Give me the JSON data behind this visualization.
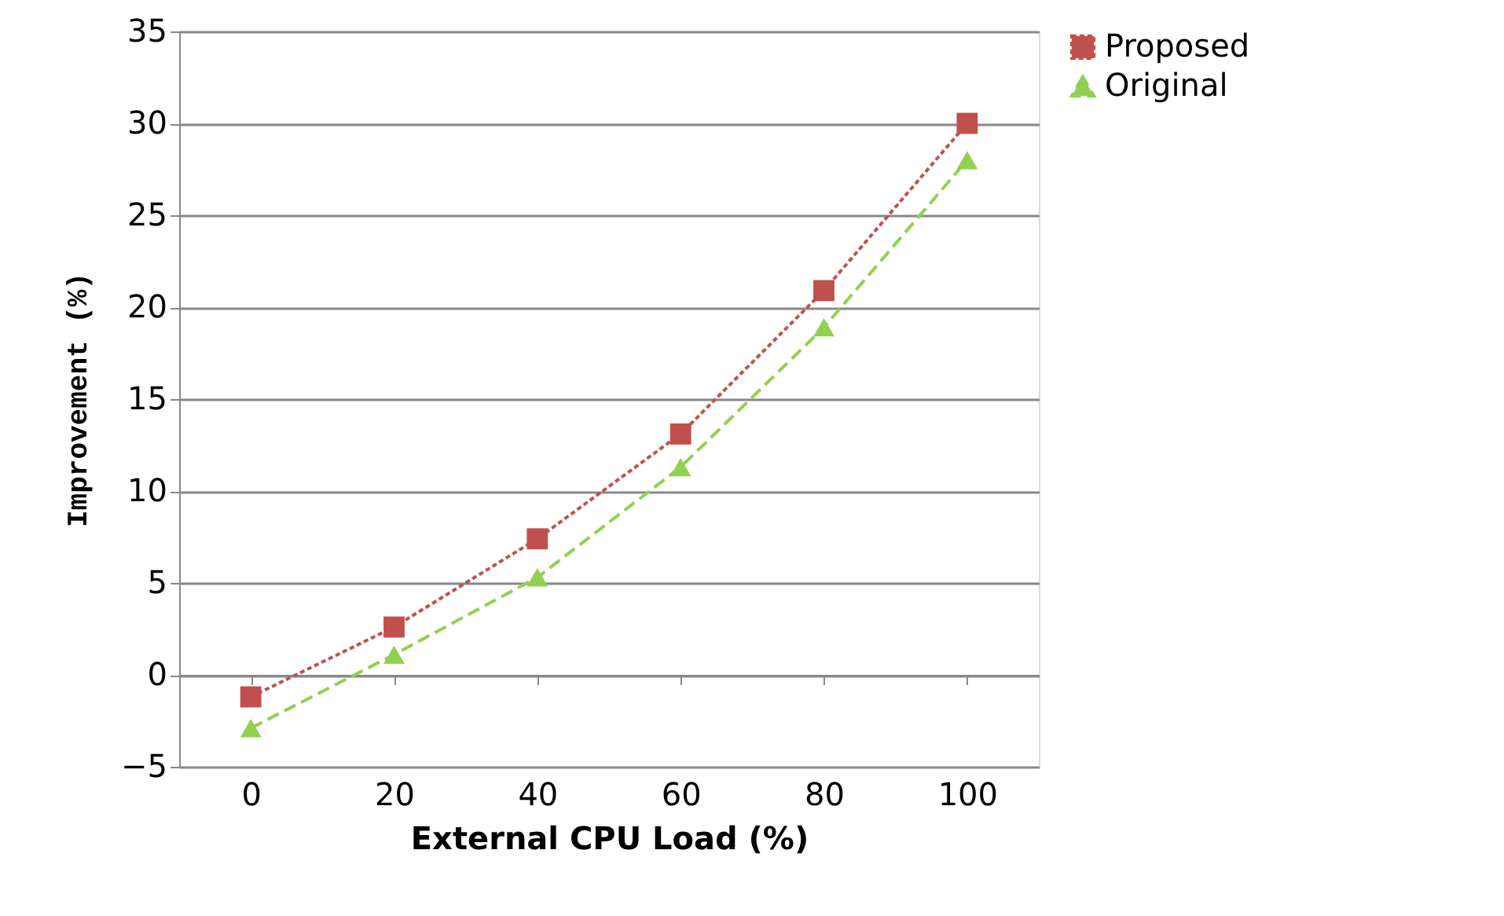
{
  "chart_data": {
    "type": "line",
    "xlabel": "External CPU Load (%)",
    "ylabel": "Improvement (%)",
    "categories": [
      "0",
      "20",
      "40",
      "60",
      "80",
      "100"
    ],
    "series": [
      {
        "name": "Proposed",
        "color": "#c0504d",
        "values": [
          -1.2,
          2.6,
          7.4,
          13.1,
          20.9,
          30.0
        ],
        "marker": "square",
        "line_style": "dotted"
      },
      {
        "name": "Original",
        "color": "#92d050",
        "values": [
          -2.9,
          1.1,
          5.3,
          11.3,
          18.9,
          28.0
        ],
        "marker": "triangle",
        "line_style": "dashed"
      }
    ],
    "ylim": [
      -5,
      35
    ],
    "yticks": [
      -5,
      0,
      5,
      10,
      15,
      20,
      25,
      30,
      35
    ],
    "grid": "y",
    "legend": "right"
  }
}
